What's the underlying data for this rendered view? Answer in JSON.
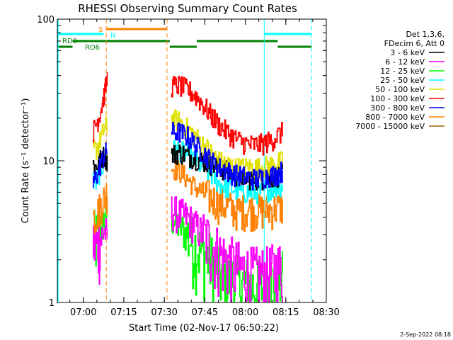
{
  "chart_data": {
    "type": "line",
    "title": "RHESSI Observing Summary Count Rates",
    "xlabel": "Start Time (02-Nov-17 06:50:22)",
    "ylabel": "Count Rate (s⁻¹ detector⁻¹)",
    "yscale": "log",
    "ylim": [
      1,
      100
    ],
    "xlim": [
      "06:50:22",
      "08:30:00"
    ],
    "x_ticks": [
      "07:00",
      "07:15",
      "07:30",
      "07:45",
      "08:00",
      "08:15",
      "08:30"
    ],
    "y_ticks": [
      "1",
      "10",
      "100"
    ],
    "grid": false,
    "legend_header": [
      "Det 1,3,6,",
      "FDecim 6, Att 0"
    ],
    "legend_position": "right",
    "footer": "2-Sep-2022 08:18",
    "series": [
      {
        "name": "3 - 6 keV",
        "color": "#000000",
        "seg1": [
          9.5,
          9.0,
          9.8,
          10.5,
          11.0,
          10.0
        ],
        "seg2": [
          11.0,
          11.5,
          11.0,
          10.5,
          10.0,
          9.5,
          9.0,
          8.5,
          8.0,
          7.8,
          7.5,
          7.5,
          7.6,
          7.8,
          8.0
        ]
      },
      {
        "name": "6 - 12 keV",
        "color": "#ff00ff",
        "seg1": [
          2.8,
          2.5,
          2.7,
          3.0,
          3.2,
          3.0
        ],
        "seg2": [
          4.5,
          4.2,
          4.0,
          3.5,
          3.0,
          2.6,
          2.2,
          2.0,
          1.8,
          1.7,
          1.6,
          1.6,
          1.6,
          1.7,
          1.8
        ]
      },
      {
        "name": "12 - 25 keV",
        "color": "#00ff00",
        "seg1": [
          3.0,
          2.8,
          3.2,
          3.5,
          3.8,
          3.6
        ],
        "seg2": [
          4.0,
          3.5,
          3.0,
          2.5,
          2.2,
          2.0,
          1.6,
          1.5,
          1.4,
          1.4,
          1.3,
          1.3,
          1.3,
          1.4,
          1.5
        ]
      },
      {
        "name": "25 - 50 keV",
        "color": "#00ffff",
        "seg1": [
          7.5,
          7.0,
          8.0,
          9.0,
          10.0,
          9.5
        ],
        "seg2": [
          12.0,
          12.0,
          11.0,
          10.0,
          9.0,
          8.0,
          7.0,
          6.5,
          6.3,
          6.0,
          6.0,
          6.0,
          6.2,
          6.5,
          6.8
        ]
      },
      {
        "name": "50 - 100 keV",
        "color": "#e0e000",
        "seg1": [
          12.0,
          12.0,
          13.0,
          15.0,
          17.0,
          18.0
        ],
        "seg2": [
          20.0,
          19.0,
          17.0,
          15.0,
          13.0,
          11.5,
          10.0,
          9.5,
          9.0,
          9.0,
          9.0,
          9.0,
          9.2,
          9.5,
          10.0
        ]
      },
      {
        "name": "100 - 300 keV",
        "color": "#ff0000",
        "seg1": [
          16.0,
          18.0,
          20.0,
          24.0,
          30.0,
          38.0
        ],
        "seg2": [
          34.0,
          34.0,
          32.0,
          29.0,
          25.0,
          21.0,
          18.0,
          16.0,
          14.5,
          13.5,
          13.0,
          13.0,
          13.5,
          14.5,
          16.0
        ]
      },
      {
        "name": "300 - 800 keV",
        "color": "#0000ff",
        "seg1": [
          7.0,
          7.5,
          8.5,
          10.0,
          11.0,
          12.0
        ],
        "seg2": [
          16.0,
          16.0,
          15.0,
          13.0,
          11.5,
          10.0,
          9.0,
          8.5,
          8.0,
          7.8,
          7.5,
          7.5,
          7.8,
          8.0,
          8.5
        ]
      },
      {
        "name": "800 - 7000 keV",
        "color": "#ff8000",
        "seg1": [
          4.0,
          4.2,
          4.5,
          5.0,
          5.5,
          6.0
        ],
        "seg2": [
          9.0,
          8.5,
          7.5,
          6.5,
          6.0,
          5.5,
          5.0,
          4.8,
          4.5,
          4.5,
          4.5,
          4.5,
          4.5,
          4.6,
          4.8
        ]
      },
      {
        "name": "7000 - 15000 keV",
        "color": "#a06400",
        "seg1": [],
        "seg2": []
      }
    ],
    "annotations": [
      {
        "label": "S",
        "color": "#ff8000"
      },
      {
        "label": "N",
        "color": "#00ffff"
      },
      {
        "label": "RD0",
        "color": "#008000"
      },
      {
        "label": "RD6",
        "color": "#008000"
      }
    ],
    "time_markers": {
      "seg1_range": [
        "07:03:30",
        "07:09:00"
      ],
      "seg2_range": [
        "07:32:30",
        "08:14:00"
      ],
      "orange_dashed": [
        "07:08:30",
        "07:31:00"
      ],
      "cyan_solid": [
        "08:07:00"
      ],
      "cyan_dashed": [
        "08:24:30"
      ],
      "s_bar": [
        "07:08:30",
        "07:31:00"
      ],
      "n_bar": [
        [
          "06:50:22",
          "07:07:30"
        ],
        [
          "08:07:00",
          "08:24:30"
        ]
      ],
      "rd_bar": [
        [
          "06:50:22",
          "06:56:00"
        ],
        [
          "06:56:00",
          "07:32:00"
        ],
        [
          "07:32:00",
          "07:42:00"
        ],
        [
          "07:42:00",
          "08:12:00"
        ],
        [
          "08:12:00",
          "08:24:30"
        ]
      ]
    }
  }
}
